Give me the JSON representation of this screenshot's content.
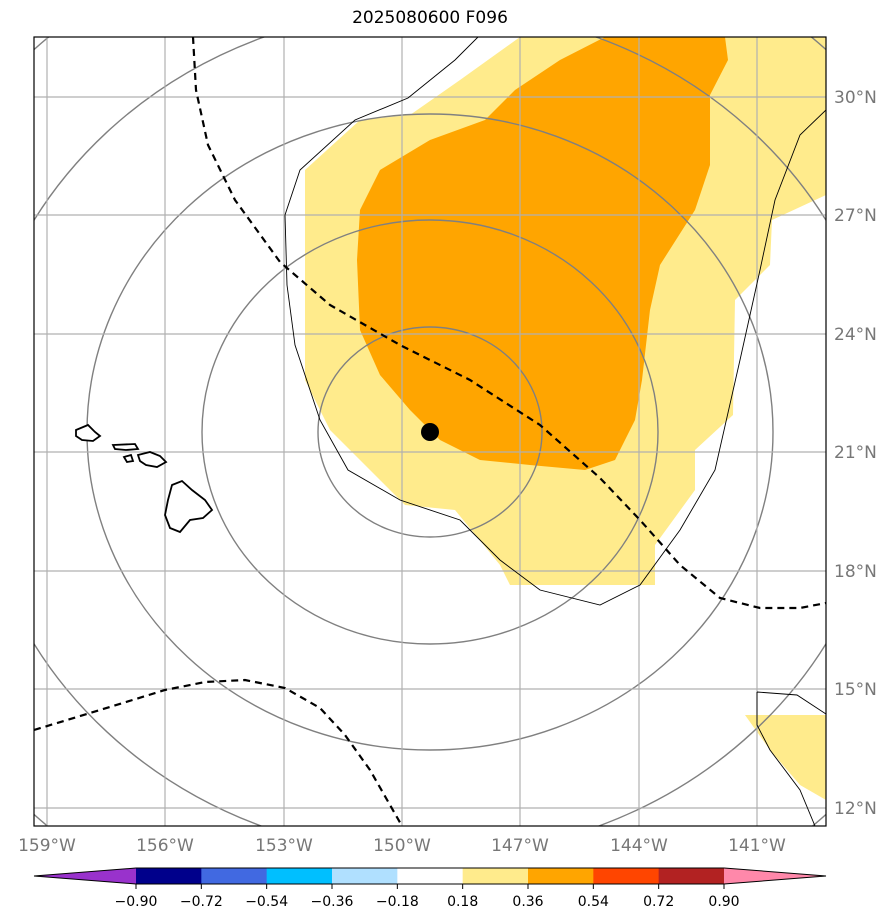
{
  "title": "2025080600 F096",
  "map": {
    "lon_ticks": [
      "159°W",
      "156°W",
      "153°W",
      "150°W",
      "147°W",
      "144°W",
      "141°W"
    ],
    "lat_ticks": [
      "30°N",
      "27°N",
      "24°N",
      "21°N",
      "18°N",
      "15°N",
      "12°N"
    ],
    "storm_marker": "storm-center",
    "colors": {
      "light_yellow": "#ffeb8c",
      "orange": "#ffa500",
      "circle_gray": "#808080",
      "grid_gray": "#b0b0b0"
    }
  },
  "colorbar": {
    "labels": [
      "−0.90",
      "−0.72",
      "−0.54",
      "−0.36",
      "−0.18",
      "0.18",
      "0.36",
      "0.54",
      "0.72",
      "0.90"
    ],
    "colors": [
      "#9932cc",
      "#00008b",
      "#4169e1",
      "#00bfff",
      "#b0e0ff",
      "#ffffff",
      "#ffeb8c",
      "#ffa500",
      "#ff4500",
      "#b22222",
      "#ff88aa"
    ]
  }
}
